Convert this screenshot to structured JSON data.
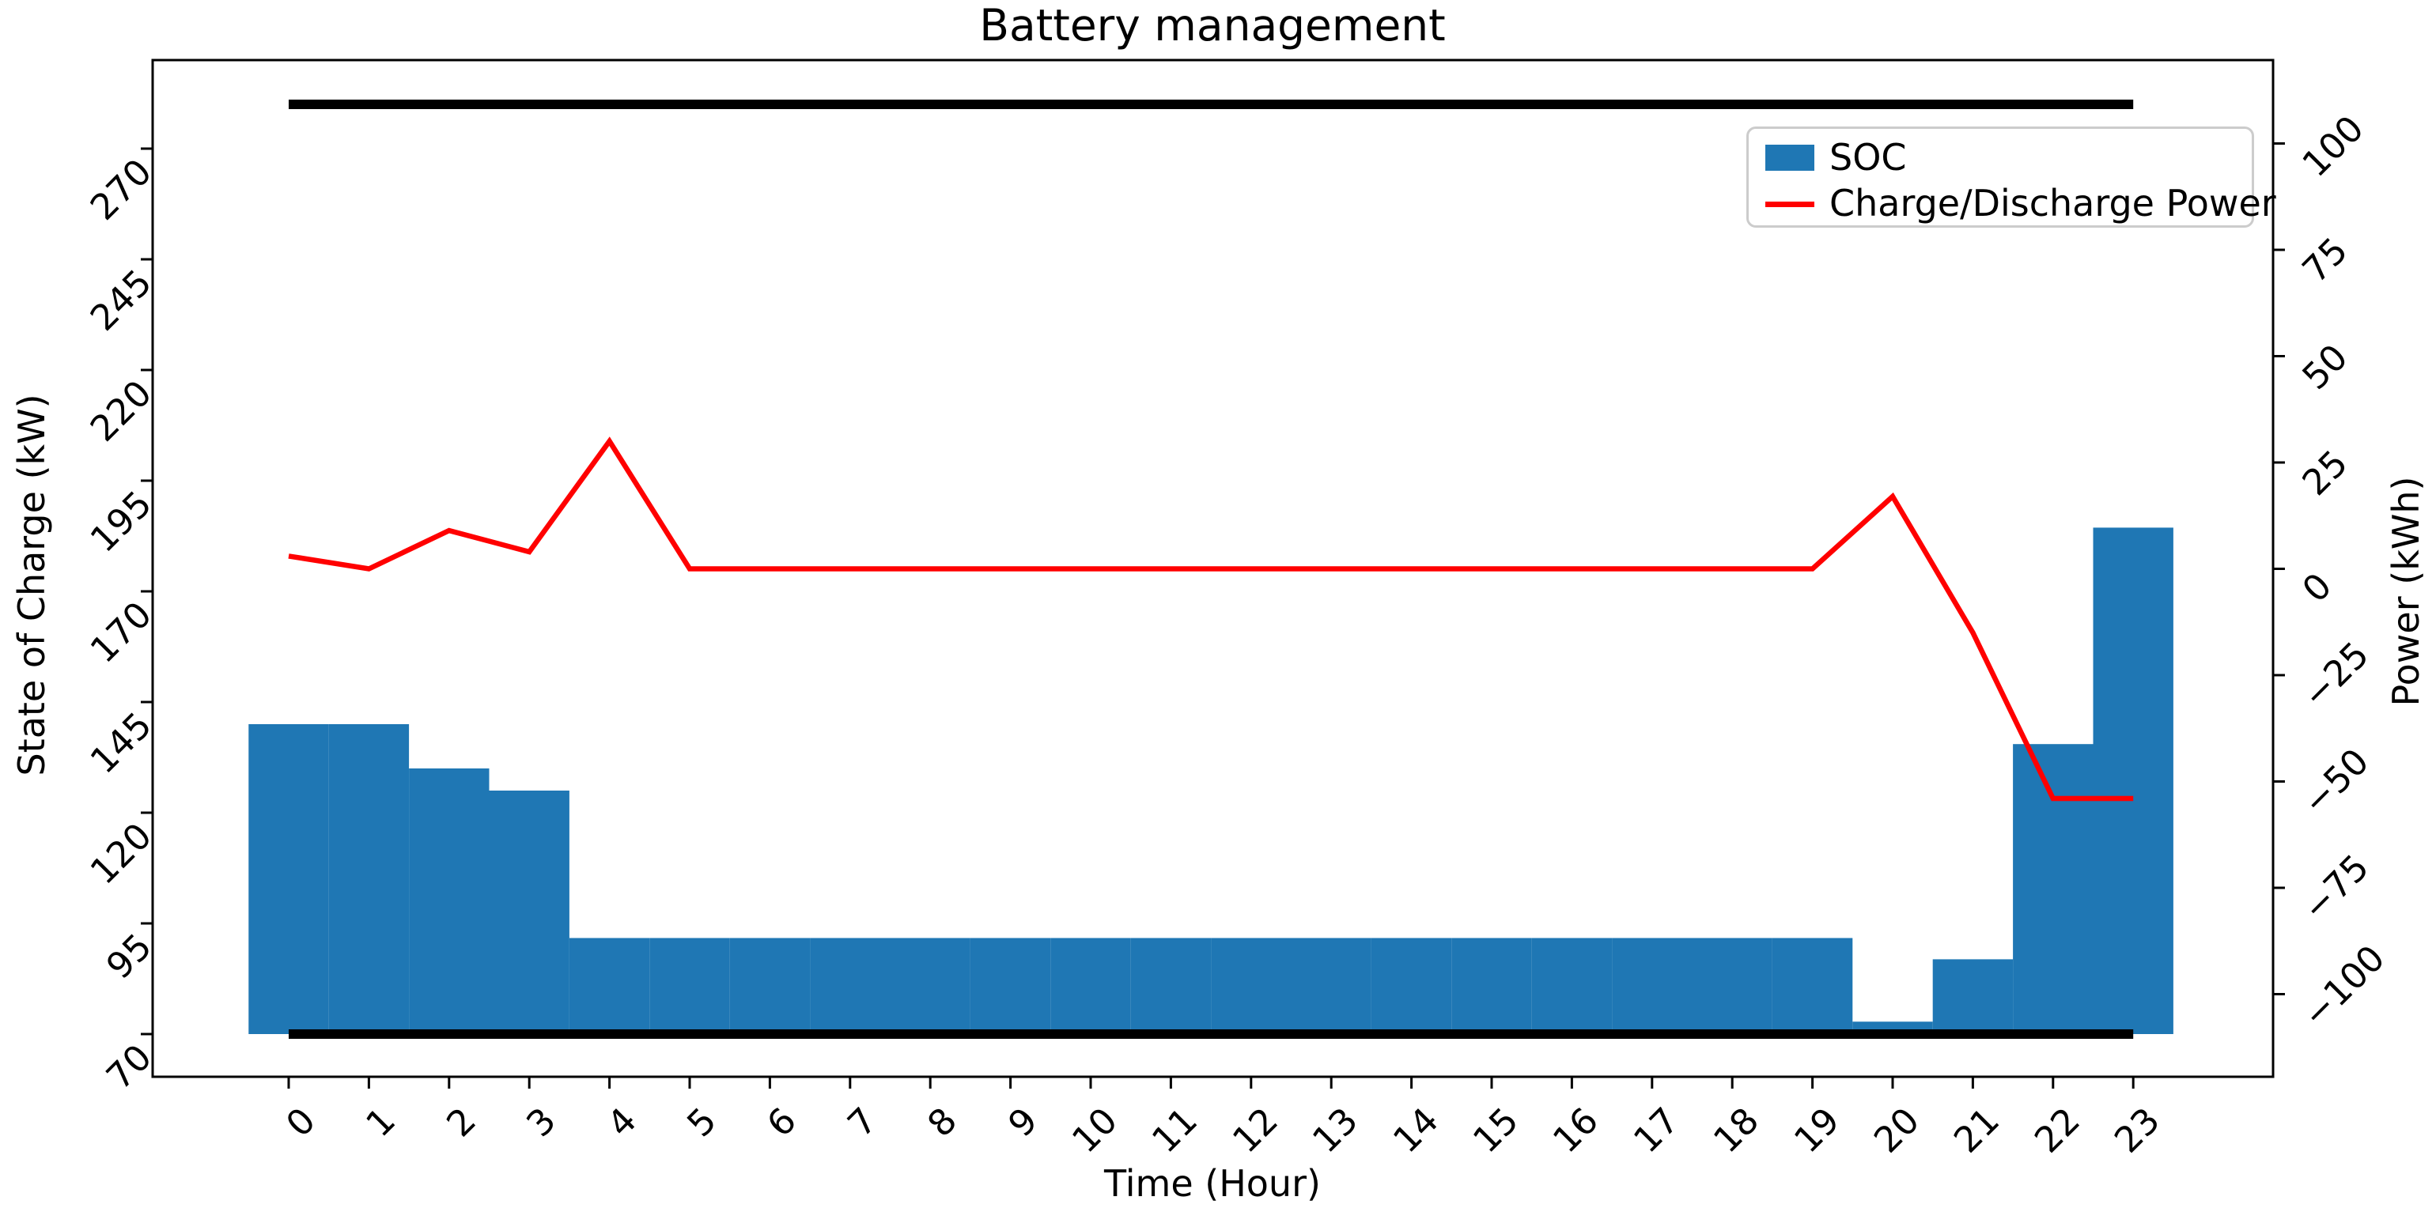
{
  "title": "Battery management",
  "axes": {
    "x_label": "Time (Hour)",
    "y_left_label": "State of Charge (kW)",
    "y_right_label": "Power (kWh)"
  },
  "legend": {
    "position": "upper right",
    "items": [
      {
        "label": "SOC",
        "marker": "bar-swatch",
        "color": "#1f77b4"
      },
      {
        "label": "Charge/Discharge Power",
        "marker": "line-swatch",
        "color": "#ff0000"
      }
    ]
  },
  "colors": {
    "bar": "#1f77b4",
    "power_line": "#ff0000",
    "limit_line": "#000000",
    "spine": "#000000",
    "legend_border": "#cccccc"
  },
  "chart_data": {
    "type": "bar",
    "title": "Battery management",
    "xlabel": "Time (Hour)",
    "ylabel_left": "State of Charge (kW)",
    "ylabel_right": "Power (kWh)",
    "x": [
      0,
      1,
      2,
      3,
      4,
      5,
      6,
      7,
      8,
      9,
      10,
      11,
      12,
      13,
      14,
      15,
      16,
      17,
      18,
      19,
      20,
      21,
      22,
      23
    ],
    "xticks": [
      "0",
      "1",
      "2",
      "3",
      "4",
      "5",
      "6",
      "7",
      "8",
      "9",
      "10",
      "11",
      "12",
      "13",
      "14",
      "15",
      "16",
      "17",
      "18",
      "19",
      "20",
      "21",
      "22",
      "23"
    ],
    "yticks_left": [
      70,
      95,
      120,
      145,
      170,
      195,
      220,
      245,
      270
    ],
    "yticks_right": [
      -100,
      -75,
      -50,
      -25,
      0,
      25,
      50,
      75,
      100
    ],
    "xlim": [
      -1.7,
      24.7
    ],
    "ylim_left": [
      59.5,
      290.5
    ],
    "ylim_right": [
      -119.5,
      119.5
    ],
    "grid": false,
    "bar_width": 1.0,
    "bar_bottom": 70,
    "series": [
      {
        "name": "SOC",
        "type": "bar",
        "axis": "left",
        "color": "#1f77b4",
        "values": [
          140,
          140,
          130,
          125,
          91.7,
          91.7,
          91.7,
          91.7,
          91.7,
          91.7,
          91.7,
          91.7,
          91.7,
          91.7,
          91.7,
          91.7,
          91.7,
          91.7,
          91.7,
          91.7,
          72.8,
          86.9,
          135.5,
          184.4
        ]
      },
      {
        "name": "Charge/Discharge Power",
        "type": "line",
        "axis": "right",
        "color": "#ff0000",
        "values": [
          3,
          0,
          9,
          4,
          30,
          0,
          0,
          0,
          0,
          0,
          0,
          0,
          0,
          0,
          0,
          0,
          0,
          0,
          0,
          0,
          17,
          -15,
          -54,
          -54
        ]
      },
      {
        "name": "SOC max limit",
        "type": "hline",
        "axis": "left",
        "color": "#000000",
        "value": 280,
        "x_range": [
          0,
          23
        ]
      },
      {
        "name": "SOC min limit",
        "type": "hline",
        "axis": "left",
        "color": "#000000",
        "value": 70,
        "x_range": [
          0,
          23
        ]
      }
    ]
  }
}
